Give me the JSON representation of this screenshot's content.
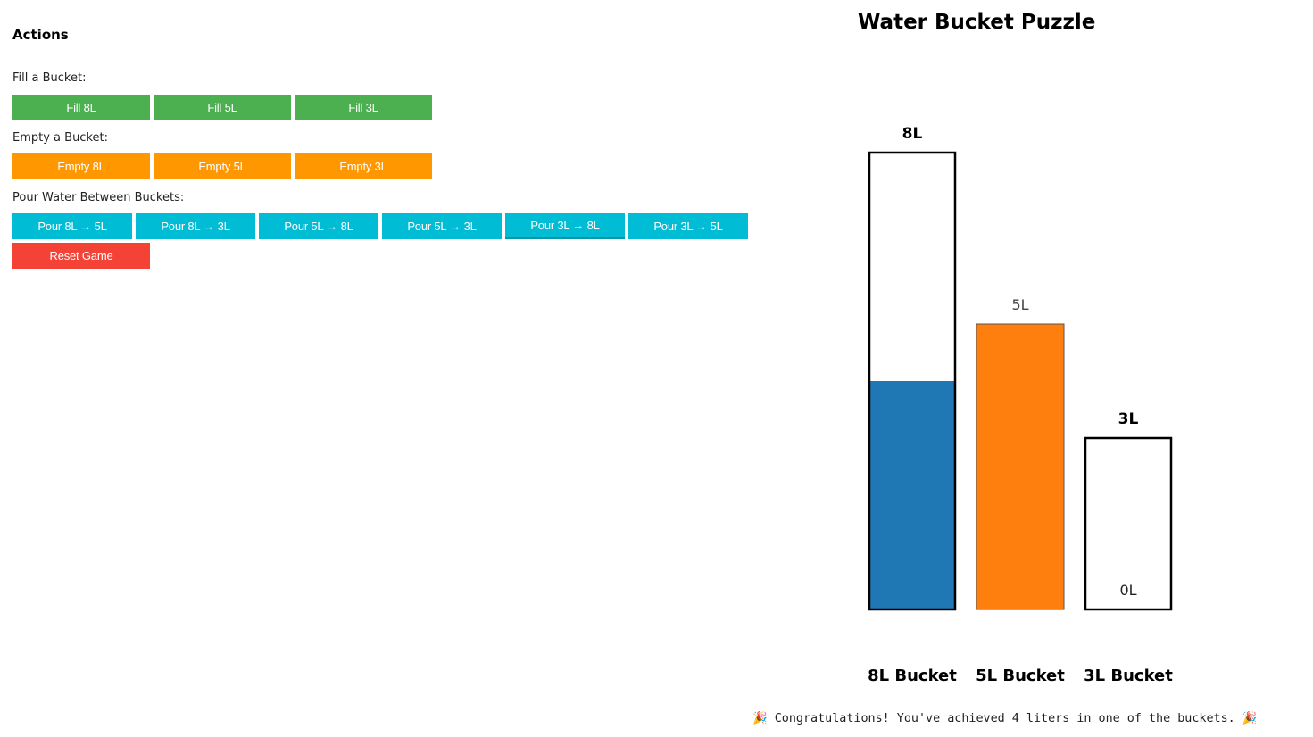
{
  "actions": {
    "title": "Actions",
    "fill_label": "Fill a Bucket:",
    "fill_buttons": [
      "Fill 8L",
      "Fill 5L",
      "Fill 3L"
    ],
    "empty_label": "Empty a Bucket:",
    "empty_buttons": [
      "Empty 8L",
      "Empty 5L",
      "Empty 3L"
    ],
    "pour_label": "Pour Water Between Buckets:",
    "pour_buttons": [
      "Pour 8L → 5L",
      "Pour 8L → 3L",
      "Pour 5L → 8L",
      "Pour 5L → 3L",
      "Pour 3L → 8L",
      "Pour 3L → 5L"
    ],
    "reset_label": "Reset Game"
  },
  "colors": {
    "fill": "#4caf50",
    "empty": "#ff9800",
    "pour": "#00bcd4",
    "reset": "#f44336"
  },
  "game": {
    "title": "Water Bucket Puzzle",
    "message": "🎉 Congratulations! You've achieved 4 liters in one of the buckets. 🎉"
  },
  "chart_data": {
    "type": "bar",
    "categories": [
      "8L Bucket",
      "5L Bucket",
      "3L Bucket"
    ],
    "capacities": [
      8,
      5,
      3
    ],
    "capacity_labels": [
      "8L",
      "",
      "3L"
    ],
    "values": [
      4,
      5,
      0
    ],
    "value_labels": [
      "",
      "5L",
      "0L"
    ],
    "colors": [
      "#1f77b4",
      "#ff7f0e",
      "#2ca02c"
    ]
  }
}
